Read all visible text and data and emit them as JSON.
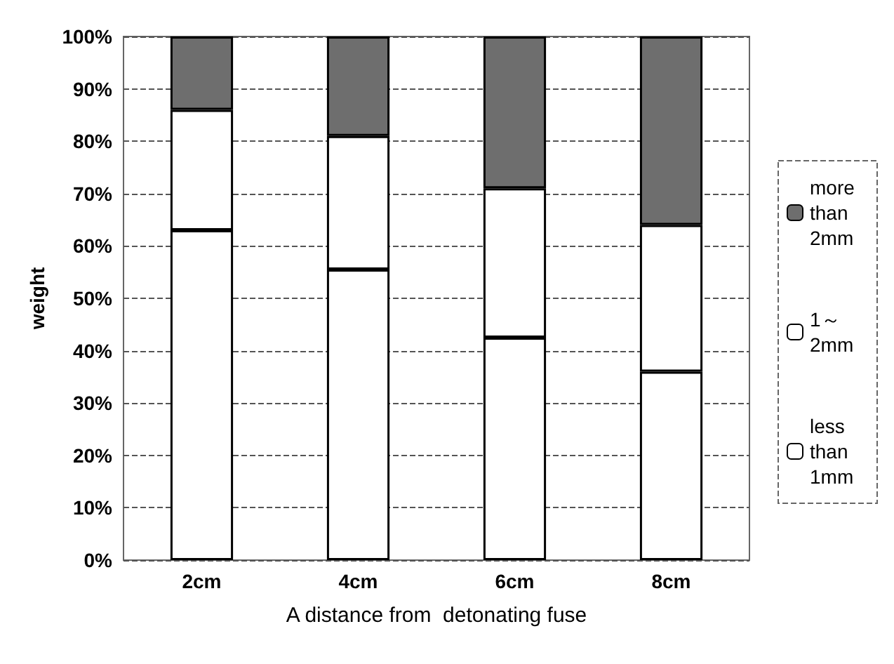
{
  "chart_data": {
    "type": "bar",
    "stacked": true,
    "xlabel": "A distance from  detonating fuse",
    "ylabel": "weight",
    "categories": [
      "2cm",
      "4cm",
      "6cm",
      "8cm"
    ],
    "series": [
      {
        "name": "less than 1mm",
        "color": "#ffffff",
        "values": [
          63,
          55.5,
          42.5,
          36
        ]
      },
      {
        "name": "1～2mm",
        "color": "#ffffff",
        "values": [
          23,
          25.5,
          28.5,
          28
        ]
      },
      {
        "name": "more than 2mm",
        "color": "#6e6e6e",
        "values": [
          14,
          19,
          29,
          36
        ]
      }
    ],
    "ylim": [
      0,
      100
    ],
    "yticks": [
      {
        "value": 0,
        "label": "0%"
      },
      {
        "value": 10,
        "label": "10%"
      },
      {
        "value": 20,
        "label": "20%"
      },
      {
        "value": 30,
        "label": "30%"
      },
      {
        "value": 40,
        "label": "40%"
      },
      {
        "value": 50,
        "label": "50%"
      },
      {
        "value": 60,
        "label": "60%"
      },
      {
        "value": 70,
        "label": "70%"
      },
      {
        "value": 80,
        "label": "80%"
      },
      {
        "value": 90,
        "label": "90%"
      },
      {
        "value": 100,
        "label": "100%"
      }
    ],
    "grid": "y",
    "legend": "right"
  }
}
